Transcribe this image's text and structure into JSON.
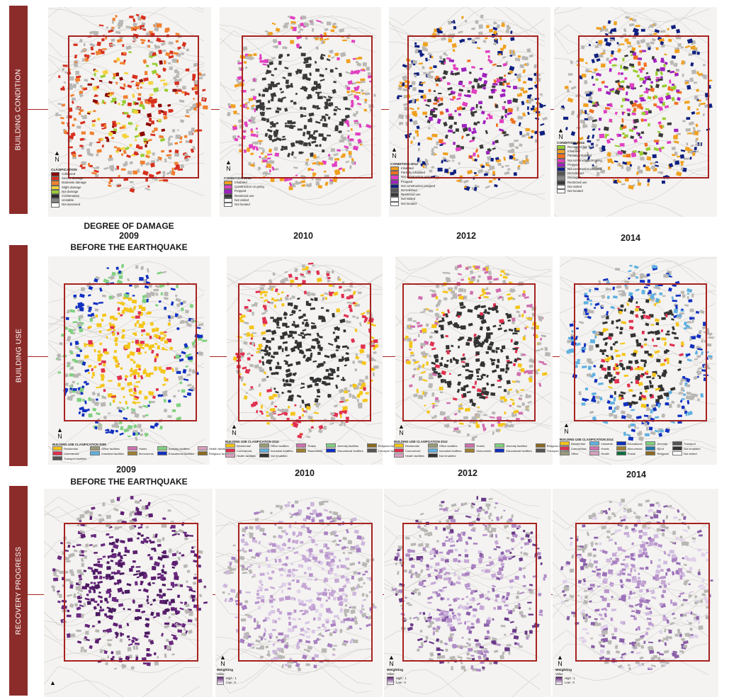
{
  "rows": [
    {
      "id": "condition",
      "side_label": "BUILDING CONDITION"
    },
    {
      "id": "use",
      "side_label": "BUILDING USE"
    },
    {
      "id": "recovery",
      "side_label": "RECOVERY PROGRESS"
    }
  ],
  "captions": {
    "damage_title": "DEGREE OF DAMAGE",
    "row1_2009": "2009",
    "row1_2010": "2010",
    "row1_2012": "2012",
    "row1_2014": "2014",
    "row2_2009": "2009",
    "row2_before": "BEFORE THE EARTHQUAKE",
    "row2_2010": "2010",
    "row2_2012": "2012",
    "row2_2014": "2014"
  },
  "legends": {
    "condition_2009": {
      "title": "CLASIFICATION",
      "items": [
        {
          "label": "Collapsed",
          "color": "#8b0000"
        },
        {
          "label": "Severe damage",
          "color": "#d7301f"
        },
        {
          "label": "Moderate damage",
          "color": "#f08030"
        },
        {
          "label": "Slight damage",
          "color": "#f5d23c"
        },
        {
          "label": "Not damage",
          "color": "#9acd32"
        },
        {
          "label": "Conservation",
          "color": "#2a2a2a"
        },
        {
          "label": "Unstable",
          "color": "#888888"
        },
        {
          "label": "Not assessed",
          "color": "#ffffff"
        }
      ]
    },
    "condition_2010": {
      "title": "CONDITION 2010",
      "items": [
        {
          "label": "Inhabited",
          "color": "#f0a020"
        },
        {
          "label": "Construction on going",
          "color": "#e040c0"
        },
        {
          "label": "Propped",
          "color": "#a020c0"
        },
        {
          "label": "Restricted use",
          "color": "#3a3a3a"
        },
        {
          "label": "Not visited",
          "color": "#ffffff"
        },
        {
          "label": "Not located",
          "color": "#ffffff"
        }
      ]
    },
    "condition_2012": {
      "title": "CONDITION 2012",
      "items": [
        {
          "label": "Inhabited",
          "color": "#f0a020"
        },
        {
          "label": "Partially inhabited",
          "color": "#f07020"
        },
        {
          "label": "Not construction going",
          "color": "#e040c0"
        },
        {
          "label": "Propped",
          "color": "#a020c0"
        },
        {
          "label": "Not construction propped",
          "color": "#102080"
        },
        {
          "label": "Demolished",
          "color": "#555555"
        },
        {
          "label": "Restricted use",
          "color": "#3a3a3a"
        },
        {
          "label": "Not visited",
          "color": "#ffffff"
        },
        {
          "label": "Not located",
          "color": "#ffffff"
        }
      ]
    },
    "condition_2014": {
      "title": "CONDITION 2014",
      "items": [
        {
          "label": "Recovered list",
          "color": "#9acd32"
        },
        {
          "label": "Inhabited",
          "color": "#f0a020"
        },
        {
          "label": "Partially inhabited",
          "color": "#f07020"
        },
        {
          "label": "Not construction on going",
          "color": "#e040c0"
        },
        {
          "label": "Propped",
          "color": "#a020c0"
        },
        {
          "label": "Not construction propped",
          "color": "#102080"
        },
        {
          "label": "Demolished",
          "color": "#555555"
        },
        {
          "label": "Damaged",
          "color": "#888888"
        },
        {
          "label": "Restricted use",
          "color": "#3a3a3a"
        },
        {
          "label": "Not visited",
          "color": "#ffffff"
        },
        {
          "label": "Not located",
          "color": "#ffffff"
        }
      ]
    }
  },
  "use_legends": [
    {
      "title": "BUILDING USE CLASIFICATION 2009",
      "items": [
        {
          "label": "Residential",
          "color": "#f5c518"
        },
        {
          "label": "Office facilities",
          "color": "#9a9a78"
        },
        {
          "label": "Hotels",
          "color": "#d070b0"
        },
        {
          "label": "Amenity facilities",
          "color": "#80d080"
        },
        {
          "label": "Health facilities",
          "color": "#d8a0c0"
        },
        {
          "label": "Commercial",
          "color": "#e03050"
        },
        {
          "label": "Industrial facilities",
          "color": "#60b0e0"
        },
        {
          "label": "Monuments",
          "color": "#a08030"
        },
        {
          "label": "Educational facilities",
          "color": "#1030c0"
        },
        {
          "label": "Religious facilities",
          "color": "#8b6a20"
        },
        {
          "label": "Transport facilities",
          "color": "#555555"
        }
      ]
    },
    {
      "title": "BUILDING USE CLASIFICATION 2010",
      "items": [
        {
          "label": "Residential",
          "color": "#f5c518"
        },
        {
          "label": "Office facilities",
          "color": "#9a9a78"
        },
        {
          "label": "Hotels",
          "color": "#d070b0"
        },
        {
          "label": "Amenity facilities",
          "color": "#80d080"
        },
        {
          "label": "Religious facilities",
          "color": "#8b6a20"
        },
        {
          "label": "Commercial",
          "color": "#e03050"
        },
        {
          "label": "Industrial facilities",
          "color": "#60b0e0"
        },
        {
          "label": "Monuments",
          "color": "#a08030"
        },
        {
          "label": "Educational facilities",
          "color": "#1030c0"
        },
        {
          "label": "Transport facilities",
          "color": "#555555"
        },
        {
          "label": "Health facilities",
          "color": "#d8a0c0"
        },
        {
          "label": "Not inhabited",
          "color": "#333333"
        }
      ]
    },
    {
      "title": "BUILDING USE CLASIFICATION 2012",
      "items": [
        {
          "label": "Residential",
          "color": "#f5c518"
        },
        {
          "label": "Office facilities",
          "color": "#9a9a78"
        },
        {
          "label": "Hotels",
          "color": "#d070b0"
        },
        {
          "label": "Amenity facilities",
          "color": "#80d080"
        },
        {
          "label": "Religious facilities",
          "color": "#8b6a20"
        },
        {
          "label": "Commercial",
          "color": "#e03050"
        },
        {
          "label": "Industrial facilities",
          "color": "#60b0e0"
        },
        {
          "label": "Monuments",
          "color": "#a08030"
        },
        {
          "label": "Educational facilities",
          "color": "#1030c0"
        },
        {
          "label": "Transport facilities",
          "color": "#555555"
        },
        {
          "label": "Health facilities",
          "color": "#d8a0c0"
        },
        {
          "label": "Not inhabited",
          "color": "#333333"
        }
      ]
    },
    {
      "title": "BUILDING USE CLASIFICATION 2014",
      "items": [
        {
          "label": "Residential",
          "color": "#f5c518"
        },
        {
          "label": "Industrial",
          "color": "#60b0e0"
        },
        {
          "label": "Educational",
          "color": "#1030c0"
        },
        {
          "label": "Amenity",
          "color": "#80d080"
        },
        {
          "label": "Transport",
          "color": "#555555"
        },
        {
          "label": "Commercial",
          "color": "#e03050"
        },
        {
          "label": "Hotels",
          "color": "#d070b0"
        },
        {
          "label": "Monuments",
          "color": "#a08030"
        },
        {
          "label": "Sport",
          "color": "#1f7aa8"
        },
        {
          "label": "Not inhabited",
          "color": "#333333"
        },
        {
          "label": "Office",
          "color": "#9a9a78"
        },
        {
          "label": "Health",
          "color": "#d8a0c0"
        },
        {
          "label": "Postal",
          "color": "#107040"
        },
        {
          "label": "Religious",
          "color": "#8b6a20"
        },
        {
          "label": "Not visited",
          "color": "#ffffff"
        }
      ]
    }
  ],
  "recovery_legend": {
    "title": "Weighting",
    "sub": "Value",
    "high": "High : 1",
    "low": "Low : 0"
  },
  "north": "N",
  "map_palettes": {
    "condition_2009": [
      "#8b0000",
      "#d7301f",
      "#f08030",
      "#f5d23c",
      "#9acd32",
      "#f08030",
      "#d7301f"
    ],
    "condition_2010": [
      "#3a3a3a",
      "#3a3a3a",
      "#3a3a3a",
      "#3a3a3a",
      "#3a3a3a",
      "#f0a020",
      "#e040c0"
    ],
    "condition_2012": [
      "#3a3a3a",
      "#3a3a3a",
      "#e040c0",
      "#a020c0",
      "#f07020",
      "#f0a020",
      "#102080"
    ],
    "condition_2014": [
      "#e040c0",
      "#a020c0",
      "#3a3a3a",
      "#f07020",
      "#9acd32",
      "#102080",
      "#f0a020"
    ],
    "use_2009": [
      "#f5c518",
      "#f5c518",
      "#f5c518",
      "#e03050",
      "#f5c518",
      "#1030c0",
      "#80d080"
    ],
    "use_2010": [
      "#333333",
      "#333333",
      "#333333",
      "#333333",
      "#333333",
      "#f5c518",
      "#e03050"
    ],
    "use_2012": [
      "#333333",
      "#333333",
      "#333333",
      "#e03050",
      "#333333",
      "#f5c518",
      "#d070b0"
    ],
    "use_2014": [
      "#333333",
      "#333333",
      "#e03050",
      "#f5c518",
      "#333333",
      "#60b0e0",
      "#1030c0"
    ],
    "rec_2009": [
      "#5b1d70",
      "#4a1a60",
      "#6a2a80",
      "#5b1d70",
      "#4a1a60",
      "#6a2a80",
      "#5b1d70"
    ],
    "rec_2010": [
      "#c6a8d6",
      "#d8c4e4",
      "#b894cc",
      "#c6a8d6",
      "#e0d0ea",
      "#a880c0",
      "#cdb6dc"
    ],
    "rec_2012": [
      "#a880c0",
      "#c6a8d6",
      "#8a60a8",
      "#b894cc",
      "#d8c4e4",
      "#6a3a88",
      "#b08cc6"
    ],
    "rec_2014": [
      "#b894cc",
      "#d0bce0",
      "#9a70b8",
      "#c6a8d6",
      "#a880c0",
      "#e0d0ea",
      "#8a60a8"
    ]
  }
}
